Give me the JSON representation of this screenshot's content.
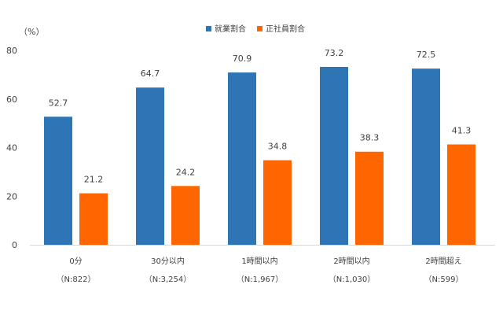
{
  "chart_data": {
    "type": "bar",
    "unit_label": "（%）",
    "categories": [
      "0分",
      "30分以内",
      "1時間以内",
      "2時間以内",
      "2時間超え"
    ],
    "sample_sizes": [
      "（N:822）",
      "（N:3,254）",
      "（N:1,967）",
      "（N:1,030）",
      "（N:599）"
    ],
    "series": [
      {
        "name": "就業割合",
        "color": "#2E75B6",
        "values": [
          52.7,
          64.7,
          70.9,
          73.2,
          72.5
        ]
      },
      {
        "name": "正社員割合",
        "color": "#FF6600",
        "values": [
          21.2,
          24.2,
          34.8,
          38.3,
          41.3
        ]
      }
    ],
    "ylim": [
      0,
      80
    ],
    "yticks": [
      0,
      20,
      40,
      60,
      80
    ],
    "grid": false,
    "legend_position": "top-center"
  }
}
